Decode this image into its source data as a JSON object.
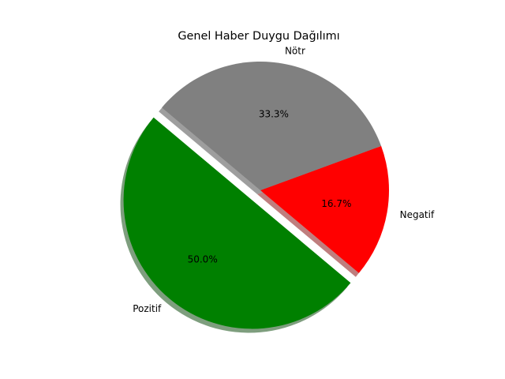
{
  "chart_data": {
    "type": "pie",
    "title": "Genel Haber Duygu Dağılımı",
    "slices": [
      {
        "label": "Pozitif",
        "value": 50.0,
        "pct_label": "50.0%",
        "color": "#008000",
        "exploded": true
      },
      {
        "label": "Negatif",
        "value": 16.7,
        "pct_label": "16.7%",
        "color": "#ff0000",
        "exploded": false
      },
      {
        "label": "Nötr",
        "value": 33.3,
        "pct_label": "33.3%",
        "color": "#808080",
        "exploded": false
      }
    ],
    "start_angle_deg": 140,
    "shadow": true,
    "legend": "none"
  }
}
